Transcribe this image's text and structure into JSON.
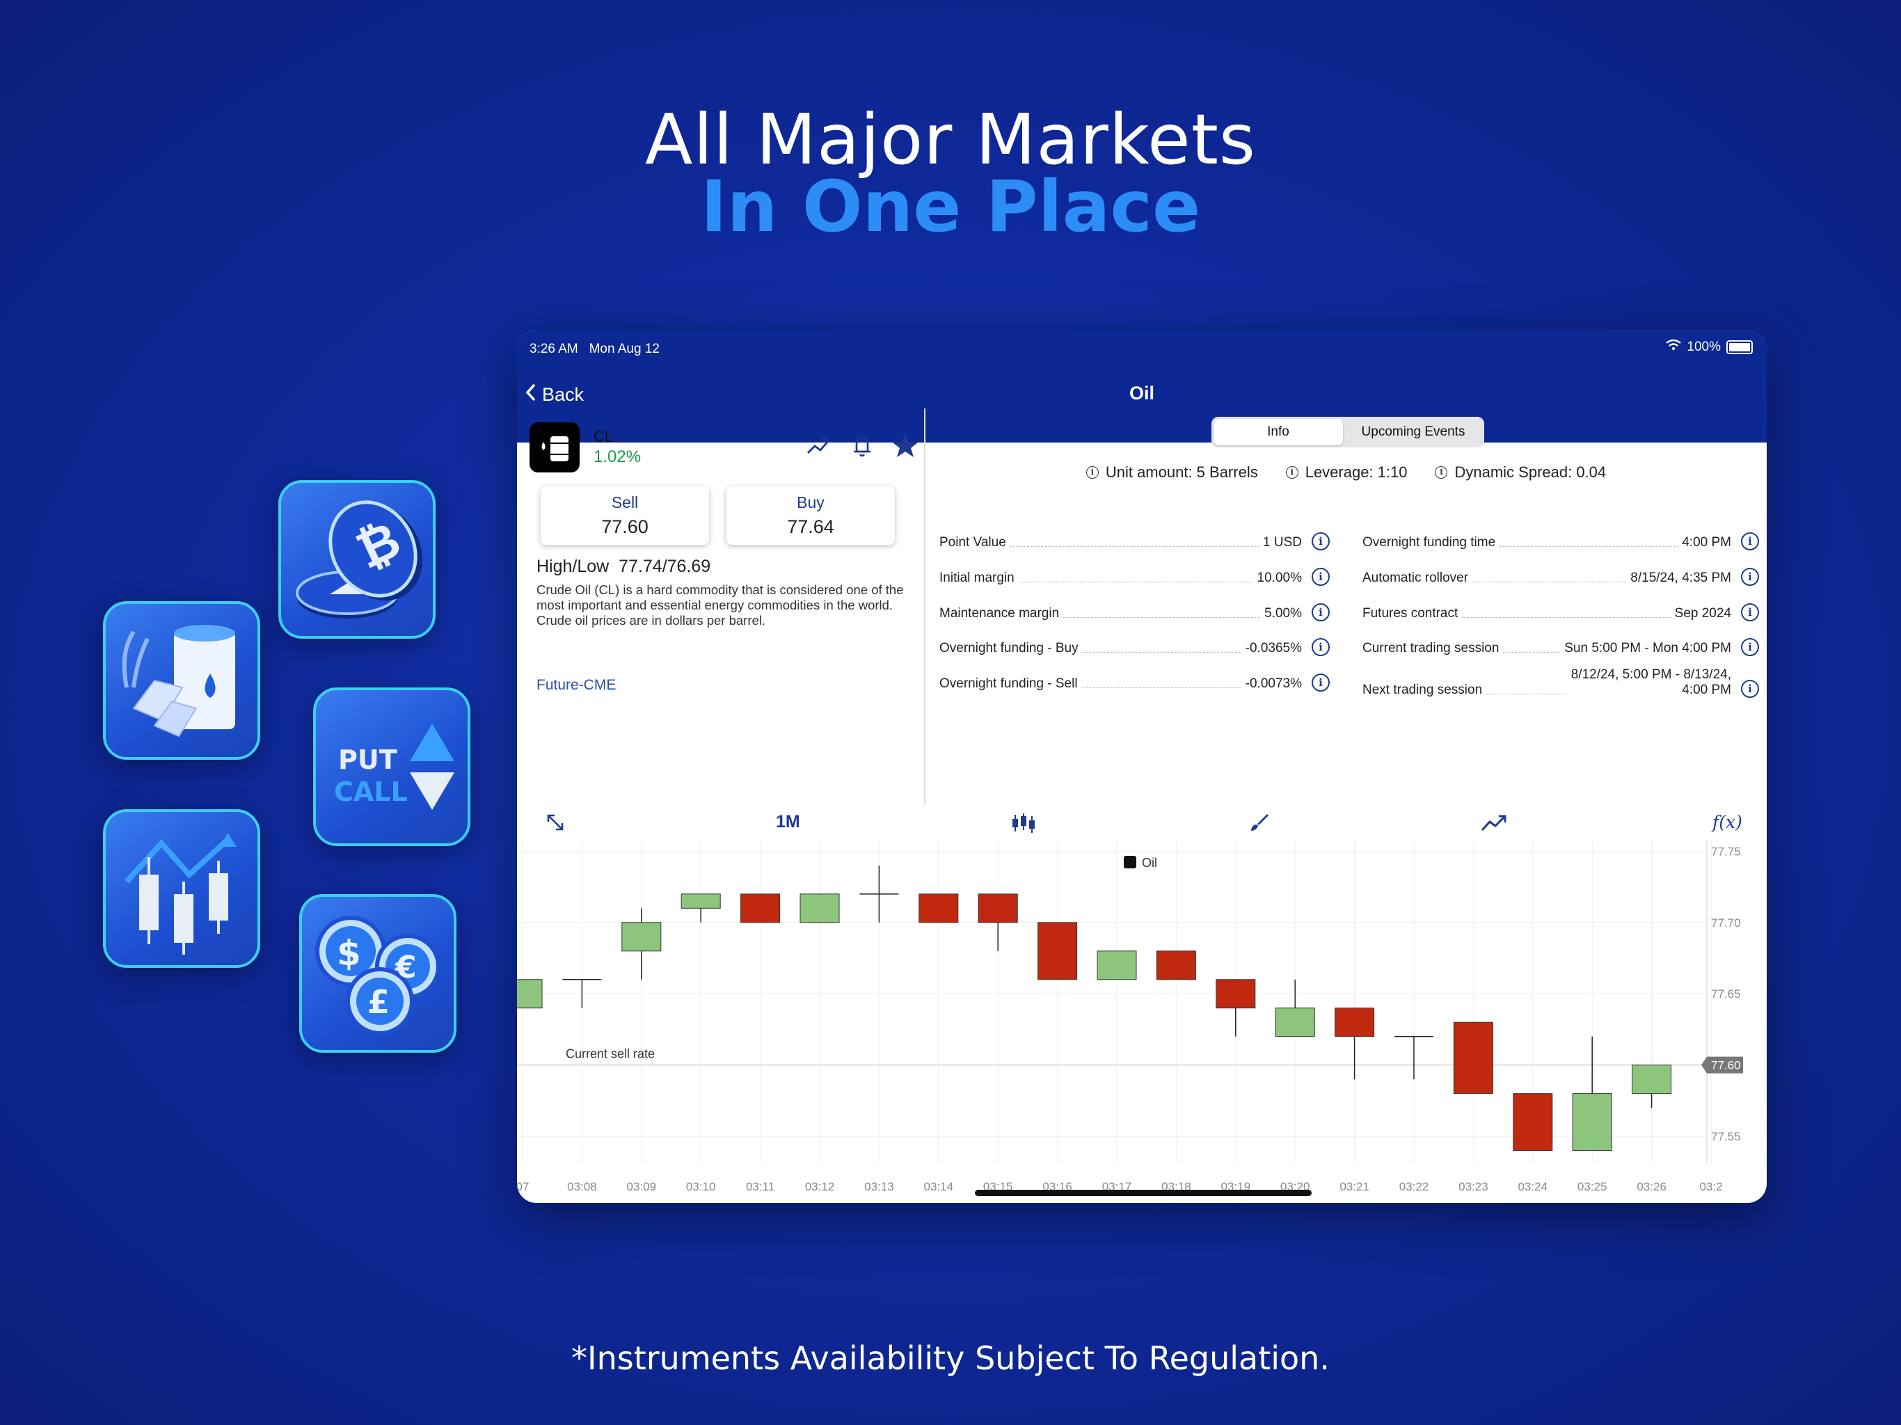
{
  "headline": {
    "line1": "All Major Markets",
    "line2": "In One Place"
  },
  "disclaimer": "*Instruments Availability Subject To Regulation.",
  "tiles": [
    {
      "name": "crypto-tile",
      "icon": "bitcoin-coins-icon"
    },
    {
      "name": "commodities-tile",
      "icon": "oil-barrel-gold-wheat-icon"
    },
    {
      "name": "options-tile",
      "icon": "put-call-icon",
      "put_label": "PUT",
      "call_label": "CALL"
    },
    {
      "name": "stocks-tile",
      "icon": "candlestick-chart-icon"
    },
    {
      "name": "forex-tile",
      "icon": "currency-coins-icon",
      "symbols": [
        "$",
        "€",
        "£"
      ]
    }
  ],
  "status_bar": {
    "time": "3:26 AM",
    "date": "Mon Aug 12",
    "battery": "100%"
  },
  "nav": {
    "back_label": "Back",
    "title": "Oil"
  },
  "instrument": {
    "symbol": "CL",
    "change": "1.02%",
    "sell_label": "Sell",
    "sell_price": "77.60",
    "buy_label": "Buy",
    "buy_price": "77.64",
    "high_low_label": "High/Low",
    "high_low": "77.74/76.69",
    "description": "Crude Oil (CL) is a hard commodity that is considered one of the most important and essential energy commodities in the world. Crude oil prices are in dollars per barrel.",
    "exchange_link": "Future-CME"
  },
  "tabs": {
    "info": "Info",
    "events": "Upcoming Events"
  },
  "summary": {
    "unit_amount": "Unit amount: 5 Barrels",
    "leverage": "Leverage: 1:10",
    "spread": "Dynamic Spread: 0.04"
  },
  "details_left": [
    {
      "label": "Point Value",
      "value": "1 USD"
    },
    {
      "label": "Initial margin",
      "value": "10.00%"
    },
    {
      "label": "Maintenance margin",
      "value": "5.00%"
    },
    {
      "label": "Overnight funding - Buy",
      "value": "-0.0365%"
    },
    {
      "label": "Overnight funding - Sell",
      "value": "-0.0073%"
    }
  ],
  "details_right": [
    {
      "label": "Overnight funding time",
      "value": "4:00 PM"
    },
    {
      "label": "Automatic rollover",
      "value": "8/15/24, 4:35 PM"
    },
    {
      "label": "Futures contract",
      "value": "Sep 2024"
    },
    {
      "label": "Current trading session",
      "value": "Sun 5:00 PM - Mon 4:00 PM"
    },
    {
      "label": "Next trading session",
      "value_line1": "8/12/24, 5:00 PM - 8/13/24,",
      "value_line2": "4:00 PM"
    }
  ],
  "toolbar": {
    "interval": "1M",
    "fx_label": "f(x)"
  },
  "chart_data": {
    "type": "candlestick",
    "title": "Oil",
    "current_label": "Current sell rate",
    "current_value": 77.6,
    "current_value_label": "77.60",
    "ylim": [
      77.531,
      77.758
    ],
    "y_ticks": [
      "77.75",
      "77.70",
      "77.65",
      "77.60",
      "77.55"
    ],
    "x_ticks": [
      "07",
      "03:08",
      "03:09",
      "03:10",
      "03:11",
      "03:12",
      "03:13",
      "03:14",
      "03:15",
      "03:16",
      "03:17",
      "03:18",
      "03:19",
      "03:20",
      "03:21",
      "03:22",
      "03:23",
      "03:24",
      "03:25",
      "03:26",
      "03:2"
    ],
    "candles": [
      {
        "t": "03:07",
        "o": 77.64,
        "h": 77.66,
        "l": 77.64,
        "c": 77.66
      },
      {
        "t": "03:08",
        "o": 77.66,
        "h": 77.66,
        "l": 77.64,
        "c": 77.66
      },
      {
        "t": "03:09",
        "o": 77.68,
        "h": 77.71,
        "l": 77.66,
        "c": 77.7
      },
      {
        "t": "03:10",
        "o": 77.71,
        "h": 77.72,
        "l": 77.7,
        "c": 77.72
      },
      {
        "t": "03:11",
        "o": 77.72,
        "h": 77.72,
        "l": 77.7,
        "c": 77.7
      },
      {
        "t": "03:12",
        "o": 77.7,
        "h": 77.72,
        "l": 77.7,
        "c": 77.72
      },
      {
        "t": "03:13",
        "o": 77.72,
        "h": 77.74,
        "l": 77.7,
        "c": 77.72
      },
      {
        "t": "03:14",
        "o": 77.72,
        "h": 77.72,
        "l": 77.7,
        "c": 77.7
      },
      {
        "t": "03:15",
        "o": 77.72,
        "h": 77.72,
        "l": 77.68,
        "c": 77.7
      },
      {
        "t": "03:16",
        "o": 77.7,
        "h": 77.7,
        "l": 77.66,
        "c": 77.66
      },
      {
        "t": "03:17",
        "o": 77.66,
        "h": 77.68,
        "l": 77.66,
        "c": 77.68
      },
      {
        "t": "03:18",
        "o": 77.68,
        "h": 77.68,
        "l": 77.66,
        "c": 77.66
      },
      {
        "t": "03:19",
        "o": 77.66,
        "h": 77.66,
        "l": 77.62,
        "c": 77.64
      },
      {
        "t": "03:20",
        "o": 77.62,
        "h": 77.66,
        "l": 77.62,
        "c": 77.64
      },
      {
        "t": "03:21",
        "o": 77.64,
        "h": 77.64,
        "l": 77.59,
        "c": 77.62
      },
      {
        "t": "03:22",
        "o": 77.62,
        "h": 77.62,
        "l": 77.59,
        "c": 77.62
      },
      {
        "t": "03:23",
        "o": 77.63,
        "h": 77.63,
        "l": 77.58,
        "c": 77.58
      },
      {
        "t": "03:24",
        "o": 77.58,
        "h": 77.58,
        "l": 77.54,
        "c": 77.54
      },
      {
        "t": "03:25",
        "o": 77.54,
        "h": 77.62,
        "l": 77.54,
        "c": 77.58
      },
      {
        "t": "03:26",
        "o": 77.58,
        "h": 77.6,
        "l": 77.57,
        "c": 77.6
      }
    ],
    "up_color": "#8dc57d",
    "down_color": "#c0290f"
  },
  "colors": {
    "navy": "#0c2892",
    "accent": "#2b8df5",
    "positive": "#1a9a4a",
    "link": "#2a4fa8"
  }
}
